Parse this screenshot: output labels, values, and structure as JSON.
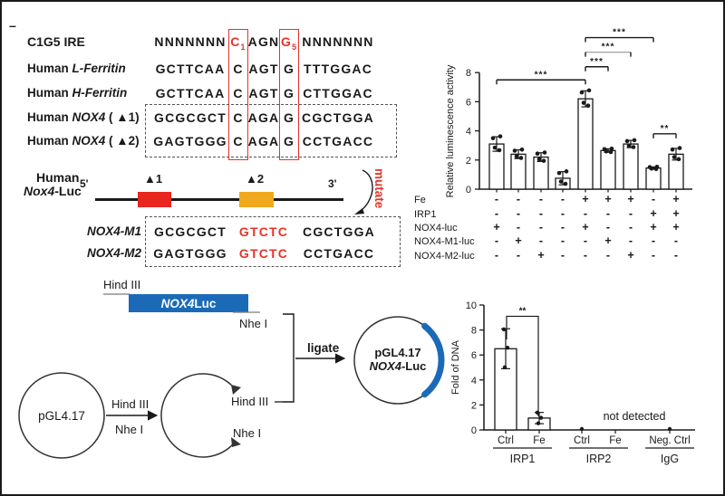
{
  "figure": {
    "corner_dash": "–"
  },
  "sequence_panel": {
    "title": "C1G5 IRE",
    "highlight_color": "#e63329",
    "header": {
      "left": "NNNNNNN",
      "c": "C",
      "c_sub": "1",
      "mid": "AGN",
      "g": "G",
      "g_sub": "5",
      "right": "NNNNNNN"
    },
    "rows": [
      {
        "prefix": "Human ",
        "name": "L-Ferritin",
        "suffix": "",
        "left": "GCTTCAA",
        "c": "C",
        "mid": "AGT",
        "g": "G",
        "right": "TTTGGAC"
      },
      {
        "prefix": "Human ",
        "name": "H-Ferritin",
        "suffix": "",
        "left": "GCTTCAA",
        "c": "C",
        "mid": "AGT",
        "g": "G",
        "right": "CTTGGAC"
      },
      {
        "prefix": "Human ",
        "name": "NOX4",
        "suffix": " ( ▲1)",
        "left": "GCGCGCT",
        "c": "C",
        "mid": "AGA",
        "g": "G",
        "right": "CGCTGGA"
      },
      {
        "prefix": "Human ",
        "name": "NOX4",
        "suffix": " ( ▲2)",
        "left": "GAGTGGG",
        "c": "C",
        "mid": "AGA",
        "g": "G",
        "right": "CCTGACC"
      }
    ]
  },
  "construct": {
    "label1": "Human",
    "label2_italic": "Nox4",
    "label2_rest": "-Luc",
    "five_prime": "5'",
    "three_prime": "3'",
    "site1": "▲1",
    "site2": "▲2",
    "site1_color": "#e8251f",
    "site2_color": "#f0a91c",
    "mutate": "mutate"
  },
  "mutants": {
    "mut_color": "#e63329",
    "rows": [
      {
        "label": "NOX4-M1",
        "left": "GCGCGCT",
        "mut": "GTCTC",
        "right": "CGCTGGA"
      },
      {
        "label": "NOX4-M2",
        "left": "GAGTGGG",
        "mut": "GTCTC",
        "right": "CCTGACC"
      }
    ]
  },
  "cloning": {
    "insert_hind3": "Hind III",
    "insert_name_italic": "NOX4",
    "insert_name_rest": "Luc",
    "insert_color": "#1b6ab8",
    "insert_nhe1": "Nhe I",
    "vector": "pGL4.17",
    "digest_hind3": "Hind III",
    "digest_nhe1": "Nhe I",
    "cut_hind3": "Hind III",
    "cut_nhe1": "Nhe I",
    "ligate": "ligate",
    "result1": "pGL4.17",
    "result2_italic": "NOX4",
    "result2_rest": "-Luc"
  },
  "chart_data": [
    {
      "type": "bar",
      "title": "",
      "xlabel": "",
      "ylabel": "Relative luminescence activity",
      "ylim": [
        0,
        8
      ],
      "yticks": [
        0,
        2,
        4,
        6,
        8
      ],
      "values": [
        3.1,
        2.4,
        2.2,
        0.75,
        6.2,
        2.65,
        3.1,
        1.45,
        2.4
      ],
      "errors": [
        0.5,
        0.3,
        0.3,
        0.45,
        0.55,
        0.12,
        0.25,
        0.08,
        0.4
      ],
      "bar_fill": "#ffffff",
      "bar_stroke": "#1a1a1a",
      "significance": [
        {
          "from": 1,
          "to": 5,
          "y": 7.5,
          "label": "***"
        },
        {
          "from": 5,
          "to": 6,
          "y": 8.4,
          "label": "***"
        },
        {
          "from": 5,
          "to": 7,
          "y": 9.4,
          "label": "***",
          "light": true
        },
        {
          "from": 5,
          "to": 8,
          "y": 10.4,
          "label": "***"
        },
        {
          "from": 8,
          "to": 9,
          "y": 3.8,
          "label": "**"
        }
      ],
      "condition_rows": [
        {
          "label": "Fe",
          "signs": [
            "-",
            "-",
            "-",
            "-",
            "+",
            "+",
            "+",
            "-",
            "+"
          ]
        },
        {
          "label": "IRP1",
          "signs": [
            "-",
            "-",
            "-",
            "-",
            "-",
            "-",
            "-",
            "+",
            "+"
          ]
        },
        {
          "label": "NOX4-luc",
          "signs": [
            "+",
            "-",
            "-",
            "-",
            "+",
            "-",
            "-",
            "+",
            "+"
          ]
        },
        {
          "label": "NOX4-M1-luc",
          "signs": [
            "-",
            "+",
            "-",
            "-",
            "-",
            "+",
            "-",
            "-",
            "-"
          ]
        },
        {
          "label": "NOX4-M2-luc",
          "signs": [
            "-",
            "-",
            "+",
            "-",
            "-",
            "-",
            "+",
            "-",
            "-"
          ]
        }
      ]
    },
    {
      "type": "bar",
      "title": "",
      "xlabel": "",
      "ylabel": "Fold of DNA",
      "ylim": [
        0,
        10
      ],
      "yticks": [
        0,
        2,
        4,
        6,
        8,
        10
      ],
      "categories": [
        "Ctrl",
        "Fe",
        "Ctrl",
        "Fe",
        "Neg. Ctrl"
      ],
      "values": [
        6.5,
        0.95,
        0,
        0,
        0
      ],
      "errors": [
        1.6,
        0.45,
        0,
        0,
        0
      ],
      "has_bar": [
        true,
        true,
        false,
        false,
        false
      ],
      "zero_dot": [
        false,
        false,
        true,
        false,
        true
      ],
      "groups": [
        {
          "name": "IRP1",
          "first": 0,
          "last": 1
        },
        {
          "name": "IRP2",
          "first": 2,
          "last": 3
        },
        {
          "name": "IgG",
          "first": 4,
          "last": 4
        }
      ],
      "significance": [
        {
          "from": 1,
          "to": 2,
          "y": 9.1,
          "label": "**"
        }
      ],
      "annotation": "not detected"
    }
  ]
}
